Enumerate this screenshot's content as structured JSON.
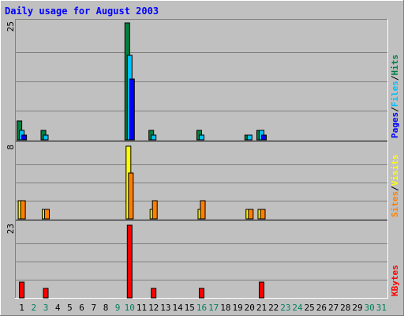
{
  "chart_data": {
    "type": "bar",
    "title": "Daily usage for August 2003",
    "categories": [
      "1",
      "2",
      "3",
      "4",
      "5",
      "6",
      "7",
      "8",
      "9",
      "10",
      "11",
      "12",
      "13",
      "14",
      "15",
      "16",
      "17",
      "18",
      "19",
      "20",
      "21",
      "22",
      "23",
      "24",
      "25",
      "26",
      "27",
      "28",
      "29",
      "30",
      "31"
    ],
    "weekend_days": [
      "2",
      "3",
      "9",
      "10",
      "16",
      "17",
      "23",
      "24",
      "30",
      "31"
    ],
    "panels": [
      {
        "ymax": 25,
        "ylabel_max": "25",
        "axis_title_parts": [
          "Pages",
          "/",
          "Files",
          "/",
          "Hits"
        ],
        "series": [
          {
            "name": "Hits",
            "color": "#008040",
            "values": [
              4,
              0,
              2,
              0,
              0,
              0,
              0,
              0,
              0,
              25,
              0,
              2,
              0,
              0,
              0,
              2,
              0,
              0,
              0,
              1,
              2,
              0,
              0,
              0,
              0,
              0,
              0,
              0,
              0,
              0,
              0
            ]
          },
          {
            "name": "Files",
            "color": "#00c0ff",
            "values": [
              2,
              0,
              1,
              0,
              0,
              0,
              0,
              0,
              0,
              18,
              0,
              1,
              0,
              0,
              0,
              1,
              0,
              0,
              0,
              1,
              2,
              0,
              0,
              0,
              0,
              0,
              0,
              0,
              0,
              0,
              0
            ]
          },
          {
            "name": "Pages",
            "color": "#0000ff",
            "values": [
              1,
              0,
              0,
              0,
              0,
              0,
              0,
              0,
              0,
              13,
              0,
              0,
              0,
              0,
              0,
              0,
              0,
              0,
              0,
              0,
              1,
              0,
              0,
              0,
              0,
              0,
              0,
              0,
              0,
              0,
              0
            ]
          }
        ]
      },
      {
        "ymax": 8,
        "ylabel_max": "8",
        "axis_title_parts": [
          "Sites",
          "/",
          "Visits"
        ],
        "series": [
          {
            "name": "Visits",
            "color": "#ffff00",
            "values": [
              2,
              0,
              1,
              0,
              0,
              0,
              0,
              0,
              0,
              8,
              0,
              1,
              0,
              0,
              0,
              1,
              0,
              0,
              0,
              1,
              1,
              0,
              0,
              0,
              0,
              0,
              0,
              0,
              0,
              0,
              0
            ]
          },
          {
            "name": "Sites",
            "color": "#ff8000",
            "values": [
              2,
              0,
              1,
              0,
              0,
              0,
              0,
              0,
              0,
              5,
              0,
              2,
              0,
              0,
              0,
              2,
              0,
              0,
              0,
              1,
              1,
              0,
              0,
              0,
              0,
              0,
              0,
              0,
              0,
              0,
              0
            ]
          }
        ]
      },
      {
        "ymax": 23,
        "ylabel_max": "23",
        "axis_title_parts": [
          "KBytes"
        ],
        "series": [
          {
            "name": "KBytes",
            "color": "#ff0000",
            "values": [
              5,
              0,
              3,
              0,
              0,
              0,
              0,
              0,
              0,
              23,
              0,
              3,
              0,
              0,
              0,
              3,
              0,
              0,
              0,
              0,
              5,
              0,
              0,
              0,
              0,
              0,
              0,
              0,
              0,
              0,
              0
            ]
          }
        ]
      }
    ]
  },
  "colors": {
    "background": "#c0c0c0",
    "title": "#0000ff",
    "weekday_label": "#000000",
    "weekend_label": "#00805c",
    "grid": "#808080",
    "slash": "#000000"
  }
}
